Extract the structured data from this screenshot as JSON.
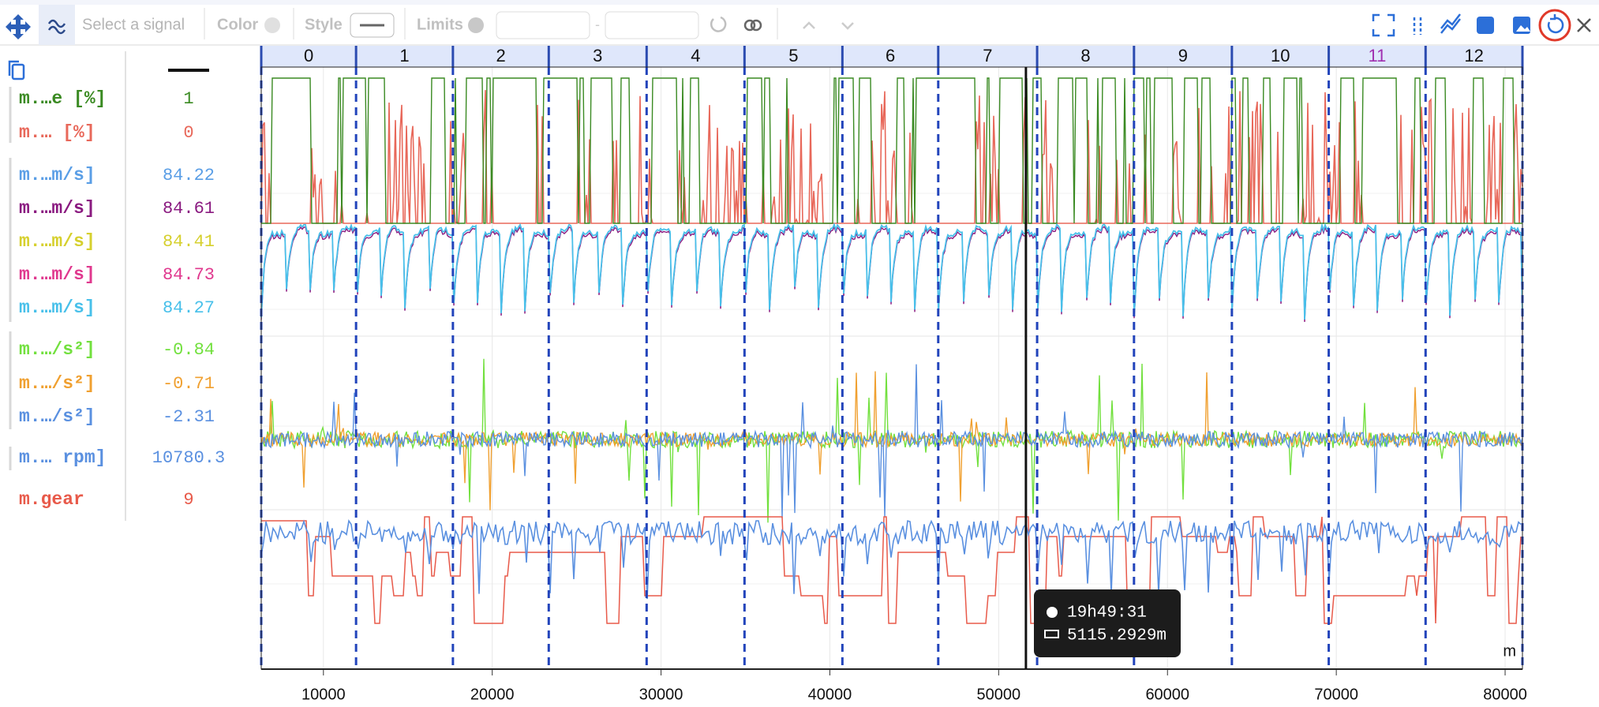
{
  "toolbar": {
    "signal_placeholder": "Select a signal",
    "color_label": "Color",
    "style_label": "Style",
    "limits_label": "Limits",
    "limits_separator": "-"
  },
  "legend": [
    {
      "name": "m.…e [%]",
      "value": 1,
      "color": "#3a8a22"
    },
    {
      "name": "m.… [%]",
      "value": 0,
      "color": "#e8685a"
    },
    {
      "name": "m.…m/s]",
      "value": 84.22,
      "color": "#5a9ee6"
    },
    {
      "name": "m.…m/s]",
      "value": 84.61,
      "color": "#8a1a80"
    },
    {
      "name": "m.…m/s]",
      "value": 84.41,
      "color": "#d6d02e"
    },
    {
      "name": "m.…m/s]",
      "value": 84.73,
      "color": "#e0388e"
    },
    {
      "name": "m.…m/s]",
      "value": 84.27,
      "color": "#48c0ea"
    },
    {
      "name": "m.…/s²]",
      "value": -0.84,
      "color": "#72e03e"
    },
    {
      "name": "m.…/s²]",
      "value": -0.71,
      "color": "#f0a030"
    },
    {
      "name": "m.…/s²]",
      "value": -2.31,
      "color": "#5a90e0"
    },
    {
      "name": "m.… rpm]",
      "value": 10780.3,
      "color": "#5a90e0"
    },
    {
      "name": "m.gear",
      "value": 9,
      "color": "#e85a4a"
    }
  ],
  "chart_data": {
    "type": "line",
    "xlim": [
      6316,
      81027
    ],
    "xticks": [
      10000,
      20000,
      30000,
      40000,
      50000,
      60000,
      70000,
      80000
    ],
    "x_unit": "m",
    "lap_labels": [
      "0",
      "1",
      "2",
      "3",
      "4",
      "5",
      "6",
      "7",
      "8",
      "9",
      "10",
      "11",
      "12"
    ],
    "lap_boundaries": [
      6316,
      11933,
      17670,
      23348,
      29146,
      34944,
      40742,
      46420,
      52278,
      58016,
      63815,
      69553,
      75290,
      81027
    ],
    "highlighted_lap": 11,
    "cursor_x": 51614,
    "tooltip": {
      "time": "19h49:31",
      "distance": "5115.2929m"
    }
  }
}
